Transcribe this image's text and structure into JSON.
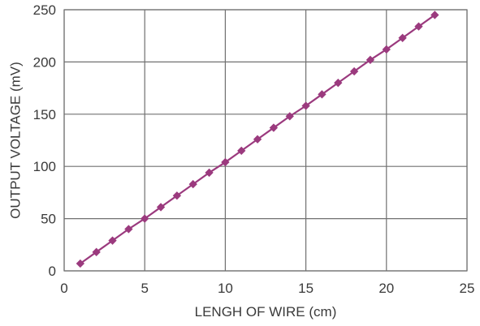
{
  "chart_data": {
    "type": "line",
    "title": "",
    "xlabel": "LENGH OF WIRE (cm)",
    "ylabel": "OUTPUT VOLTAGE (mV)",
    "xlim": [
      0,
      25
    ],
    "ylim": [
      0,
      250
    ],
    "x_ticks": [
      0,
      5,
      10,
      15,
      20,
      25
    ],
    "y_ticks": [
      0,
      50,
      100,
      150,
      200,
      250
    ],
    "grid": true,
    "legend": "none",
    "series": [
      {
        "color": "#9b3a7e",
        "marker": "diamond",
        "x": [
          1,
          2,
          3,
          4,
          5,
          6,
          7,
          8,
          9,
          10,
          11,
          12,
          13,
          14,
          15,
          16,
          17,
          18,
          19,
          20,
          21,
          22,
          23
        ],
        "y": [
          7,
          18,
          29,
          40,
          50,
          61,
          72,
          83,
          94,
          104,
          115,
          126,
          137,
          148,
          158,
          169,
          180,
          191,
          202,
          212,
          223,
          234,
          245
        ]
      }
    ]
  }
}
